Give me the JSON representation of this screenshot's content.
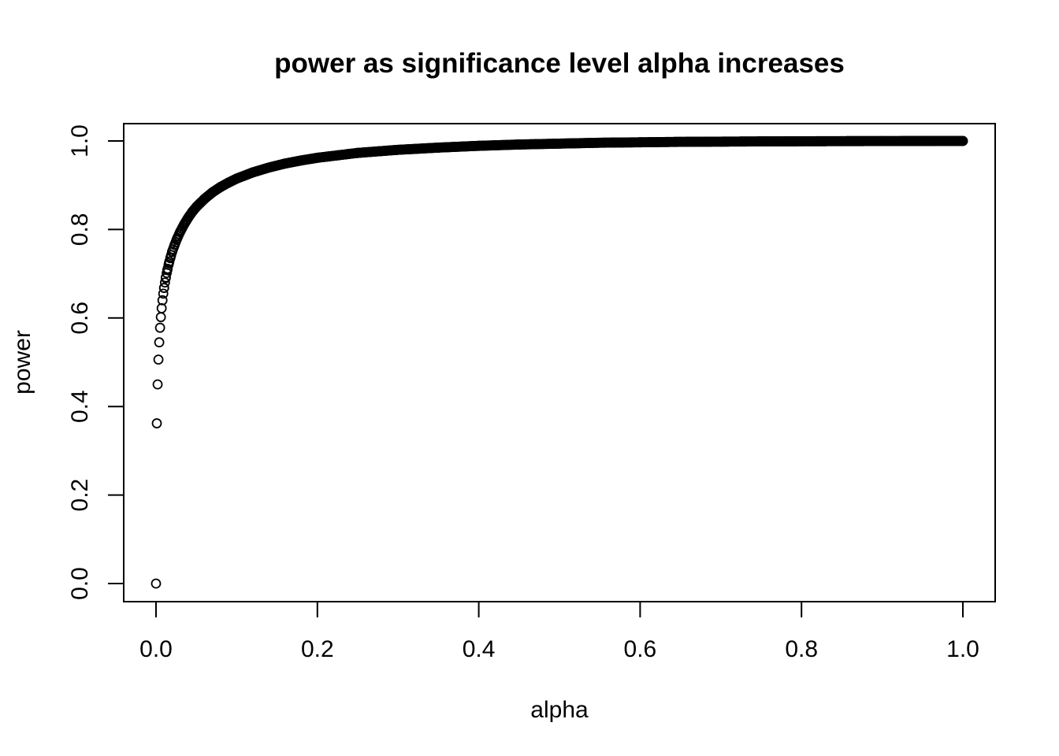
{
  "chart_data": {
    "type": "scatter",
    "title": "power as significance level alpha increases",
    "xlabel": "alpha",
    "ylabel": "power",
    "xlim": [
      0,
      1
    ],
    "ylim": [
      0,
      1
    ],
    "xticks": [
      "0.0",
      "0.2",
      "0.4",
      "0.6",
      "0.8",
      "1.0"
    ],
    "yticks": [
      "0.0",
      "0.2",
      "0.4",
      "0.6",
      "0.8",
      "1.0"
    ],
    "grid": false,
    "legend": "none",
    "marker": "open-circle",
    "series": [
      {
        "x": [
          0,
          0.001,
          0.002,
          0.003,
          0.004,
          0.005,
          0.006,
          0.007,
          0.008,
          0.009,
          0.01,
          0.012,
          0.014,
          0.016,
          0.018,
          0.02,
          0.023,
          0.026,
          0.03,
          0.035,
          0.04,
          0.045,
          0.05,
          0.06,
          0.07,
          0.08,
          0.09,
          0.1,
          0.12,
          0.14,
          0.16,
          0.18,
          0.2,
          0.25,
          0.3,
          0.35,
          0.4,
          0.45,
          0.5,
          0.55,
          0.6,
          0.65,
          0.7,
          0.75,
          0.8,
          0.85,
          0.9,
          0.95,
          1.0
        ],
        "y": [
          0.0,
          0.362,
          0.45,
          0.506,
          0.545,
          0.578,
          0.602,
          0.622,
          0.64,
          0.655,
          0.668,
          0.69,
          0.708,
          0.724,
          0.737,
          0.75,
          0.765,
          0.779,
          0.795,
          0.812,
          0.827,
          0.84,
          0.851,
          0.869,
          0.884,
          0.896,
          0.906,
          0.915,
          0.929,
          0.94,
          0.949,
          0.956,
          0.962,
          0.973,
          0.98,
          0.985,
          0.989,
          0.992,
          0.994,
          0.996,
          0.997,
          0.998,
          0.9985,
          0.999,
          0.9993,
          0.9996,
          0.9998,
          0.9999,
          1.0
        ]
      }
    ]
  }
}
